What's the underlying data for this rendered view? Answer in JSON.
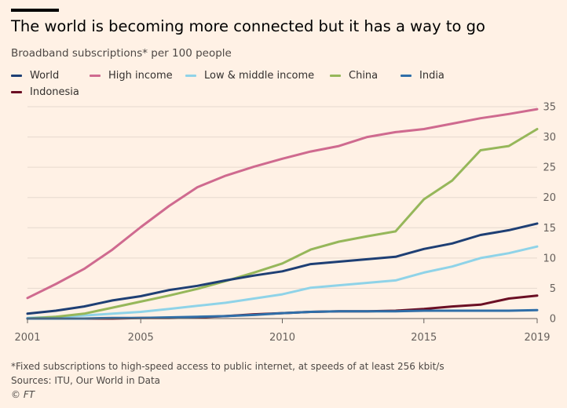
{
  "header": {
    "title": "The world is becoming more connected but it has a way to go",
    "subtitle": "Broadband subscriptions* per 100 people"
  },
  "footer": {
    "note": "*Fixed subscriptions to high-speed access to public internet, at speeds of at least 256 kbit/s",
    "sources": "Sources: ITU, Our World in Data",
    "credit": "© FT"
  },
  "colors": {
    "background": "#fff1e5",
    "grid": "#e6d9ce",
    "axis": "#66605c"
  },
  "chart_data": {
    "type": "line",
    "title": "The world is becoming more connected but it has a way to go",
    "subtitle": "Broadband subscriptions* per 100 people",
    "x": [
      2001,
      2002,
      2003,
      2004,
      2005,
      2006,
      2007,
      2008,
      2009,
      2010,
      2011,
      2012,
      2013,
      2014,
      2015,
      2016,
      2017,
      2018,
      2019
    ],
    "xlim": [
      2001,
      2019
    ],
    "ylim": [
      0,
      35
    ],
    "xticks": [
      2001,
      2005,
      2010,
      2015,
      2019
    ],
    "yticks": [
      0,
      5,
      10,
      15,
      20,
      25,
      30,
      35
    ],
    "grid": "horizontal",
    "legend": "top",
    "series": [
      {
        "name": "World",
        "color": "#1e3f74",
        "values": [
          0.8,
          1.3,
          2.0,
          3.0,
          3.7,
          4.7,
          5.4,
          6.3,
          7.1,
          7.8,
          9.0,
          9.4,
          9.8,
          10.2,
          11.5,
          12.4,
          13.8,
          14.6,
          15.7
        ]
      },
      {
        "name": "High income",
        "color": "#cf6a8f",
        "values": [
          3.4,
          5.7,
          8.2,
          11.4,
          15.1,
          18.6,
          21.7,
          23.6,
          25.1,
          26.4,
          27.6,
          28.5,
          30.0,
          30.8,
          31.3,
          32.2,
          33.1,
          33.8,
          34.6
        ]
      },
      {
        "name": "Low & middle income",
        "color": "#8fd3e8",
        "values": [
          0.1,
          0.3,
          0.5,
          0.8,
          1.1,
          1.6,
          2.1,
          2.6,
          3.3,
          4.0,
          5.1,
          5.5,
          5.9,
          6.3,
          7.6,
          8.6,
          10.0,
          10.8,
          11.9
        ]
      },
      {
        "name": "China",
        "color": "#96b75a",
        "values": [
          0.0,
          0.3,
          0.8,
          1.8,
          2.8,
          3.8,
          4.9,
          6.2,
          7.6,
          9.1,
          11.4,
          12.7,
          13.6,
          14.4,
          19.7,
          22.8,
          27.8,
          28.5,
          31.3
        ]
      },
      {
        "name": "India",
        "color": "#2f6ea8",
        "values": [
          0.0,
          0.0,
          0.0,
          0.1,
          0.1,
          0.2,
          0.3,
          0.4,
          0.6,
          0.9,
          1.1,
          1.2,
          1.2,
          1.2,
          1.3,
          1.3,
          1.3,
          1.3,
          1.4
        ]
      },
      {
        "name": "Indonesia",
        "color": "#6b0f24",
        "values": [
          0.0,
          0.0,
          0.0,
          0.0,
          0.1,
          0.1,
          0.2,
          0.4,
          0.7,
          0.9,
          1.1,
          1.2,
          1.2,
          1.3,
          1.6,
          2.0,
          2.3,
          3.3,
          3.8
        ]
      }
    ]
  }
}
